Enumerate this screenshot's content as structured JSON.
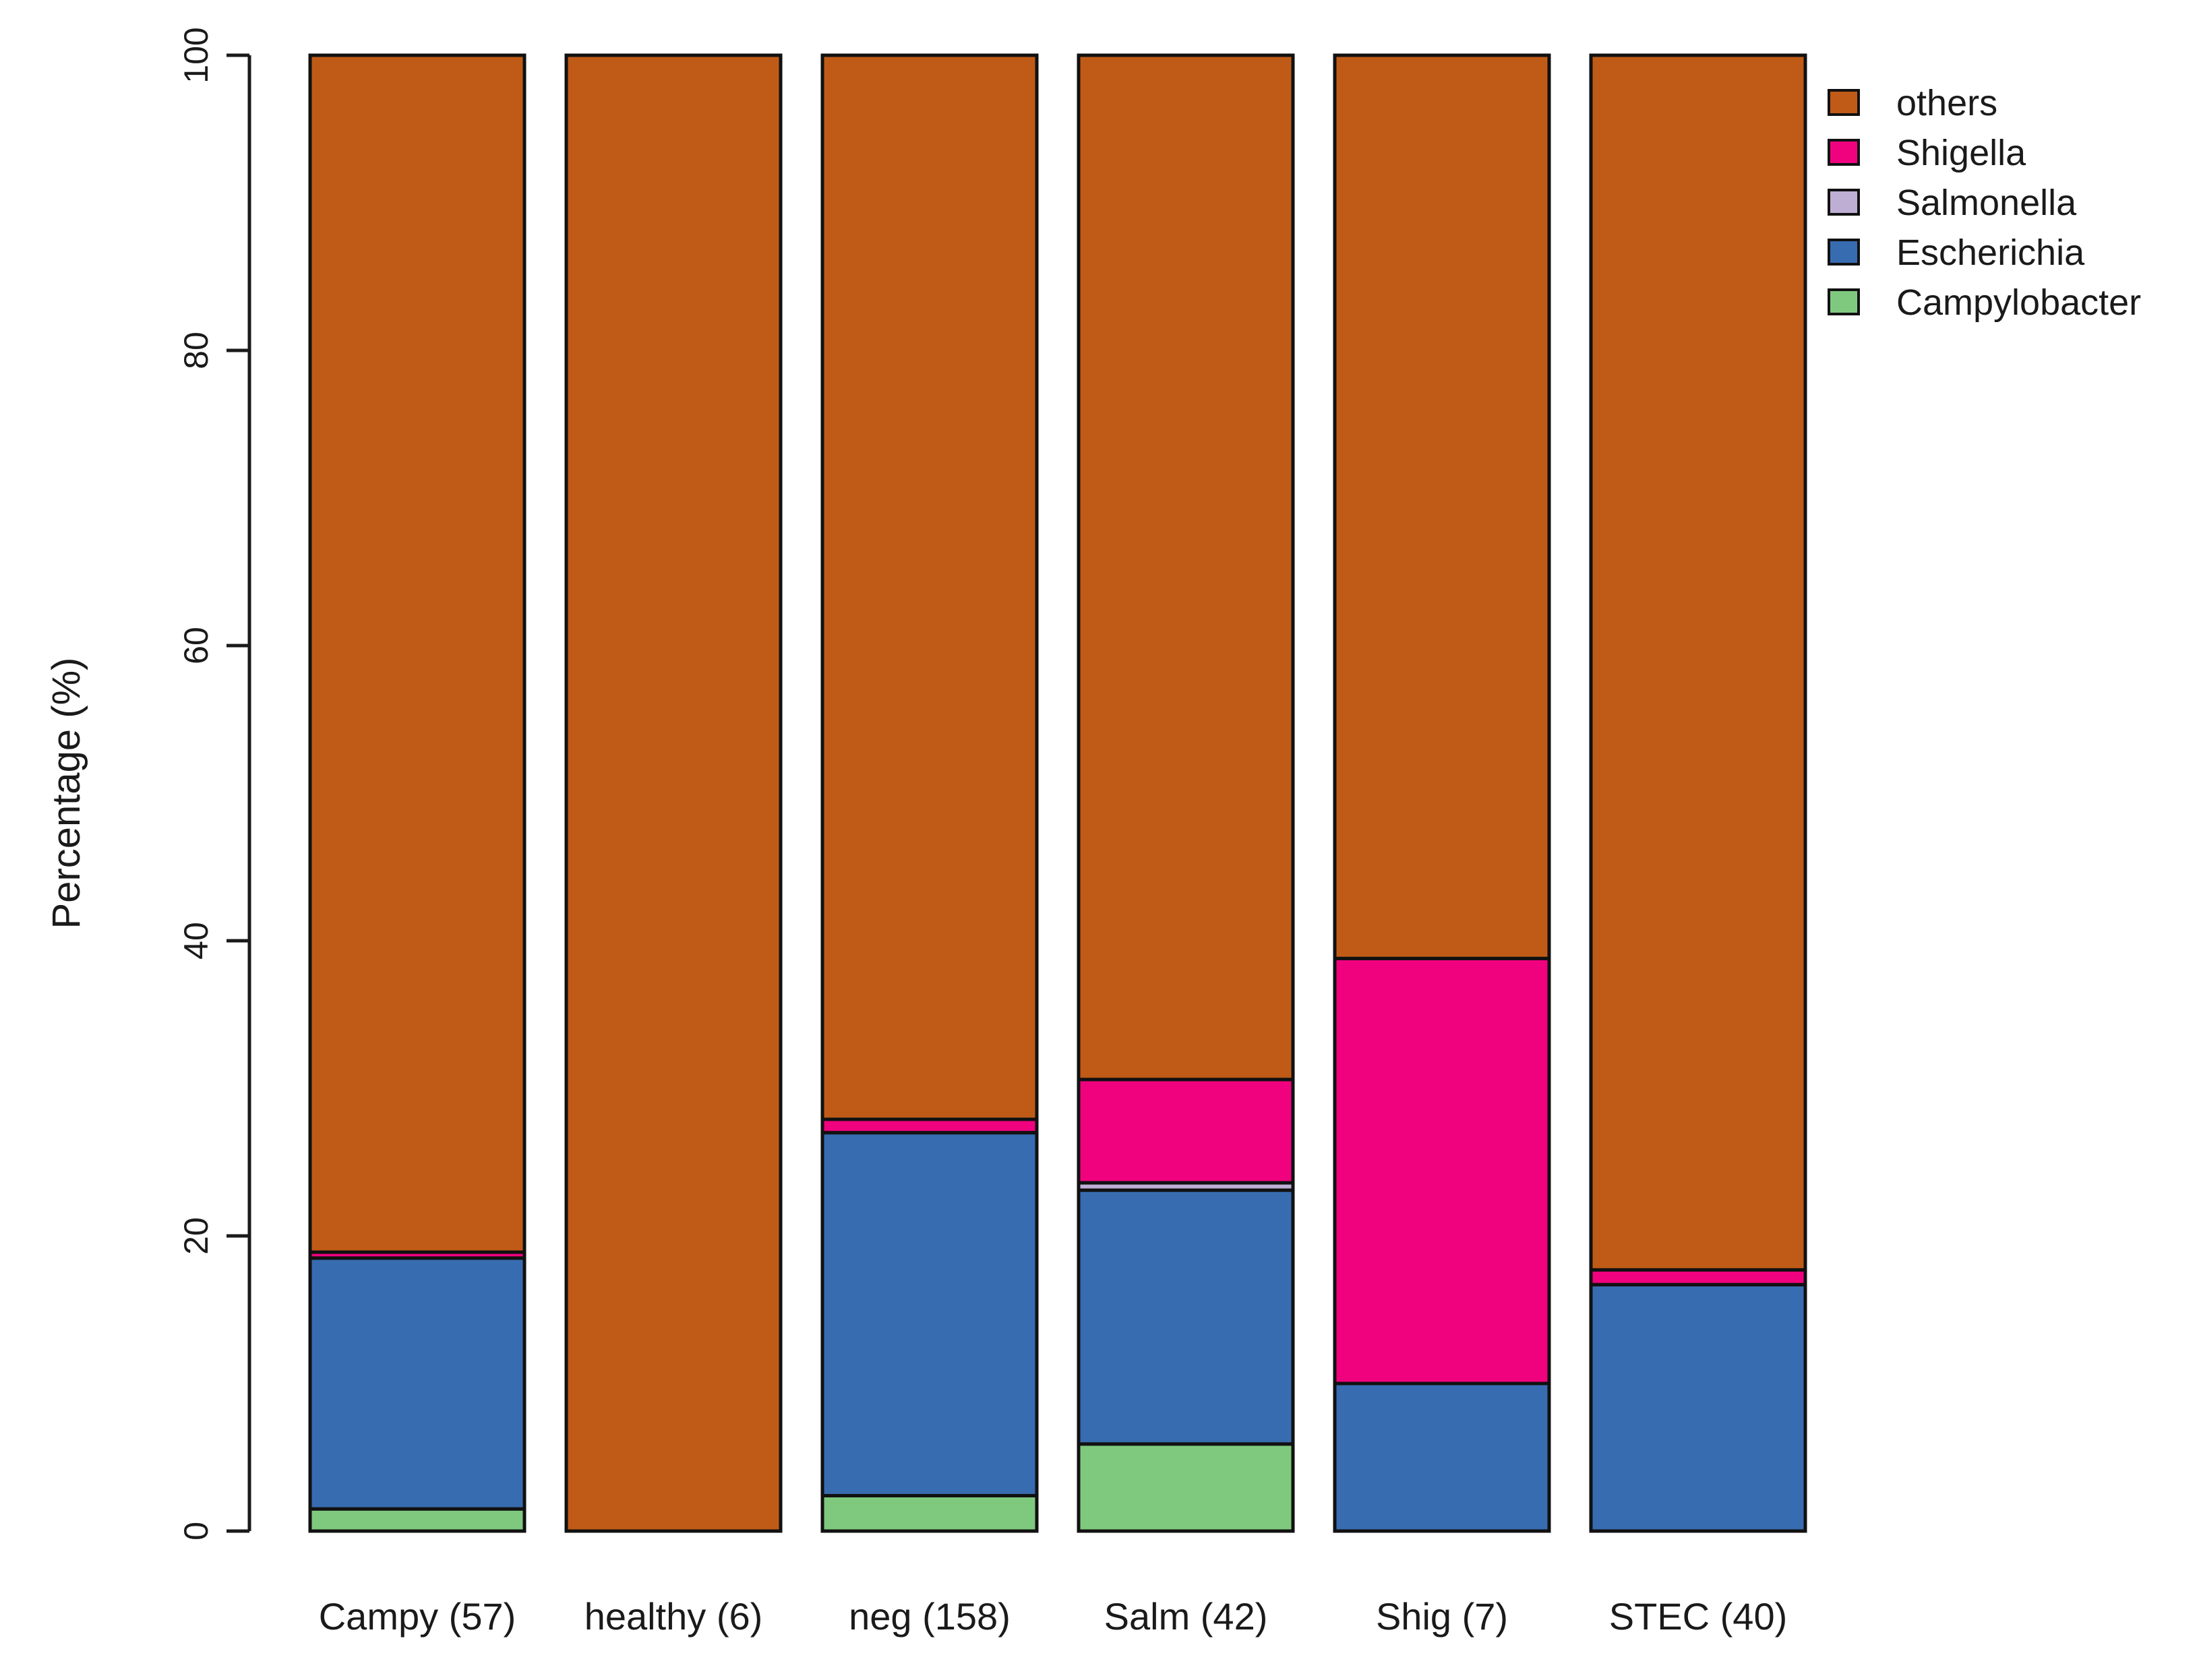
{
  "chart_data": {
    "type": "bar",
    "stacked": true,
    "title": "",
    "xlabel": "",
    "ylabel": "Percentage (%)",
    "ylim": [
      0,
      100
    ],
    "yticks": [
      "0",
      "20",
      "40",
      "60",
      "80",
      "100"
    ],
    "categories": [
      "Campy (57)",
      "healthy (6)",
      "neg (158)",
      "Salm (42)",
      "Shig (7)",
      "STEC (40)"
    ],
    "series": [
      {
        "name": "Campylobacter",
        "color": "#7fc97f",
        "values": [
          1.5,
          0.0,
          2.4,
          5.9,
          0.0,
          0.0
        ]
      },
      {
        "name": "Escherichia",
        "color": "#386cb0",
        "values": [
          17.0,
          0.0,
          24.6,
          17.2,
          10.0,
          16.7
        ]
      },
      {
        "name": "Salmonella",
        "color": "#beaed4",
        "values": [
          0.0,
          0.0,
          0.0,
          0.5,
          0.0,
          0.0
        ]
      },
      {
        "name": "Shigella",
        "color": "#f0027f",
        "values": [
          0.4,
          0.0,
          0.9,
          7.0,
          28.8,
          1.0
        ]
      },
      {
        "name": "others",
        "color": "#bf5b17",
        "values": [
          81.1,
          100.0,
          72.1,
          69.4,
          61.2,
          82.3
        ]
      }
    ],
    "legend": {
      "position": "top-right",
      "order": [
        "others",
        "Shigella",
        "Salmonella",
        "Escherichia",
        "Campylobacter"
      ]
    },
    "grid": false
  }
}
